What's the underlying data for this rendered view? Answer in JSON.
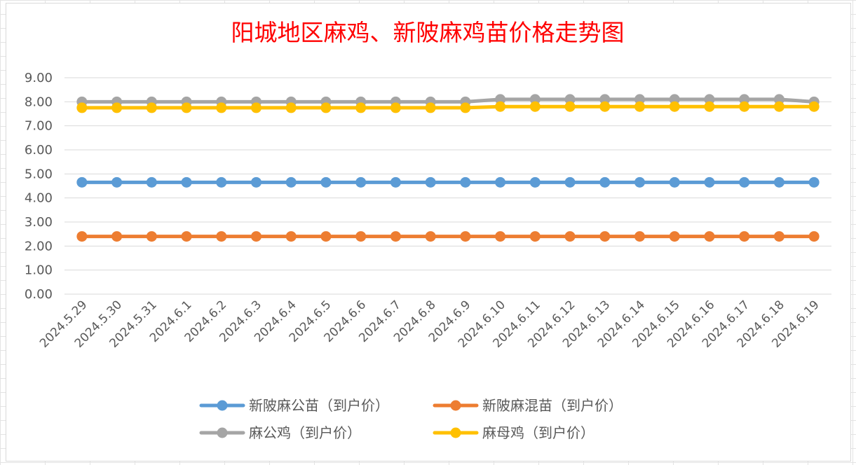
{
  "chart_data": {
    "type": "line",
    "title": "阳城地区麻鸡、新陂麻鸡苗价格走势图",
    "xlabel": "",
    "ylabel": "",
    "ylim": [
      0,
      9
    ],
    "ytick_step": 1,
    "ytick_decimals": 2,
    "grid": "horizontal",
    "legend_position": "bottom",
    "categories": [
      "2024.5.29",
      "2024.5.30",
      "2024.5.31",
      "2024.6.1",
      "2024.6.2",
      "2024.6.3",
      "2024.6.4",
      "2024.6.5",
      "2024.6.6",
      "2024.6.7",
      "2024.6.8",
      "2024.6.9",
      "2024.6.10",
      "2024.6.11",
      "2024.6.12",
      "2024.6.13",
      "2024.6.14",
      "2024.6.15",
      "2024.6.16",
      "2024.6.17",
      "2024.6.18",
      "2024.6.19"
    ],
    "series": [
      {
        "name": "新陂麻公苗（到户价）",
        "color": "#5b9bd5",
        "values": [
          4.65,
          4.65,
          4.65,
          4.65,
          4.65,
          4.65,
          4.65,
          4.65,
          4.65,
          4.65,
          4.65,
          4.65,
          4.65,
          4.65,
          4.65,
          4.65,
          4.65,
          4.65,
          4.65,
          4.65,
          4.65,
          4.65
        ]
      },
      {
        "name": "新陂麻混苗（到户价）",
        "color": "#ed7d31",
        "values": [
          2.4,
          2.4,
          2.4,
          2.4,
          2.4,
          2.4,
          2.4,
          2.4,
          2.4,
          2.4,
          2.4,
          2.4,
          2.4,
          2.4,
          2.4,
          2.4,
          2.4,
          2.4,
          2.4,
          2.4,
          2.4,
          2.4
        ]
      },
      {
        "name": "麻公鸡（到户价）",
        "color": "#a5a5a5",
        "values": [
          8.0,
          8.0,
          8.0,
          8.0,
          8.0,
          8.0,
          8.0,
          8.0,
          8.0,
          8.0,
          8.0,
          8.0,
          8.1,
          8.1,
          8.1,
          8.1,
          8.1,
          8.1,
          8.1,
          8.1,
          8.1,
          8.0
        ]
      },
      {
        "name": "麻母鸡（到户价）",
        "color": "#ffc000",
        "values": [
          7.75,
          7.75,
          7.75,
          7.75,
          7.75,
          7.75,
          7.75,
          7.75,
          7.75,
          7.75,
          7.75,
          7.75,
          7.8,
          7.8,
          7.8,
          7.8,
          7.8,
          7.8,
          7.8,
          7.8,
          7.8,
          7.8
        ]
      }
    ]
  }
}
